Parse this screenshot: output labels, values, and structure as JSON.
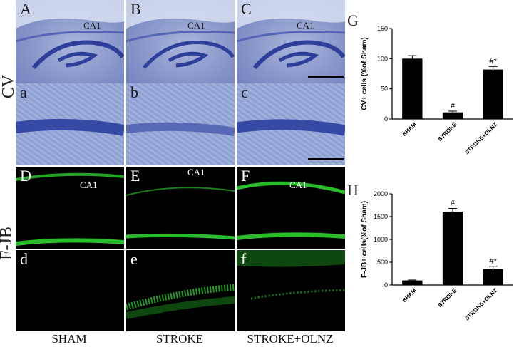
{
  "row_labels": {
    "cv": "CV",
    "fjb": "F-JB"
  },
  "col_labels": [
    "SHAM",
    "STROKE",
    "STROKE+OLNZ"
  ],
  "panels": {
    "A": "A",
    "B": "B",
    "C": "C",
    "a": "a",
    "b": "b",
    "c": "c",
    "D": "D",
    "E": "E",
    "F": "F",
    "d": "d",
    "e": "e",
    "f": "f"
  },
  "region_label": "CA1",
  "colors": {
    "cv_stain": "#3a4fa8",
    "fjb_signal": "#2fd02f",
    "bar": "#000000"
  },
  "chart_labels": {
    "G": "G",
    "H": "H"
  },
  "chart_data": [
    {
      "type": "bar",
      "categories": [
        "SHAM",
        "STROKE",
        "STROKE+OLNZ"
      ],
      "values": [
        100,
        11,
        82
      ],
      "errors": [
        5,
        2,
        5
      ],
      "annotations": [
        "",
        "#",
        "#*"
      ],
      "ylabel": "CV+ cells (%of Sham)",
      "ylim": [
        0,
        150
      ],
      "yticks": [
        0,
        50,
        100,
        150
      ]
    },
    {
      "type": "bar",
      "categories": [
        "SHAM",
        "STROKE",
        "STROKE+OLNZ"
      ],
      "values": [
        100,
        1610,
        350
      ],
      "errors": [
        10,
        70,
        60
      ],
      "annotations": [
        "",
        "#",
        "#*"
      ],
      "ylabel": "F-JB+ cells(%of Sham)",
      "ylim": [
        0,
        2000
      ],
      "yticks": [
        0,
        500,
        1000,
        1500,
        2000
      ]
    }
  ]
}
